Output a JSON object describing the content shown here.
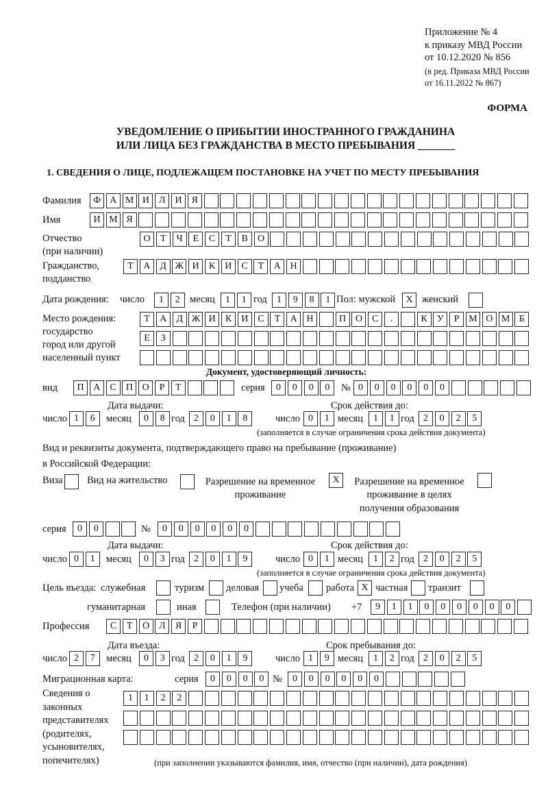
{
  "header": {
    "lines": [
      "Приложение № 4",
      "к приказу МВД России",
      "от 10.12.2020 № 856"
    ],
    "edit_lines": [
      "(в ред. Приказа МВД России",
      "от 16.11.2022 № 867)"
    ],
    "form_label": "ФОРМА"
  },
  "title": {
    "line1": "УВЕДОМЛЕНИЕ О ПРИБЫТИИ ИНОСТРАННОГО ГРАЖДАНИНА",
    "line2": "ИЛИ ЛИЦА БЕЗ ГРАЖДАНСТВА В МЕСТО ПРЕБЫВАНИЯ _______"
  },
  "section1": {
    "heading": "1. СВЕДЕНИЯ О ЛИЦЕ, ПОДЛЕЖАЩЕМ ПОСТАНОВКЕ НА УЧЕТ ПО МЕСТУ ПРЕБЫВАНИЯ"
  },
  "surname": {
    "label": "Фамилия",
    "value": "ФАМИЛИЯ"
  },
  "name": {
    "label": "Имя",
    "value": "ИМЯ"
  },
  "patronymic": {
    "label": "Отчество",
    "label2": "(при наличии)",
    "value": "ОТЧЕСТВО"
  },
  "citizenship": {
    "label": "Гражданство,",
    "label2": "подданство",
    "value": "ТАДЖИКИСТАН"
  },
  "birth": {
    "label": "Дата рождения:",
    "day_label": "число",
    "day": "12",
    "month_label": "месяц",
    "month": "11",
    "year_label": "год",
    "year": "1981"
  },
  "sex": {
    "label": "Пол: мужской",
    "male": "X",
    "female_label": "женский",
    "female": ""
  },
  "birthplace": {
    "label": [
      "Место рождения:",
      "государство",
      "город или другой",
      "населенный пункт"
    ],
    "row1": "ТАДЖИКИСТАН ПОС. КУРМОМБ",
    "row2": "ЕЗ",
    "row3": ""
  },
  "id_doc": {
    "heading": "Документ, удостоверяющий личность:",
    "type_label": "вид",
    "type": "ПАСПОРТ",
    "series_label": "серия",
    "series": "0000",
    "number_label": "№",
    "number": "000000",
    "issue_label": "Дата выдачи:",
    "issue": {
      "day": "16",
      "month": "08",
      "year": "2018"
    },
    "valid_label": "Срок действия до:",
    "valid": {
      "day": "01",
      "month": "11",
      "year": "2025"
    },
    "note": "(заполняется в случае ограничения срока действия документа)"
  },
  "labels": {
    "day": "число",
    "month": "месяц",
    "year": "год"
  },
  "stay_doc": {
    "heading": "Вид и реквизиты документа, подтверждающего право на пребывание (проживание)",
    "heading2": "в Российской Федерации:",
    "visa_label": "Виза",
    "visa": "",
    "residence_label": "Вид на жительство",
    "residence": "",
    "trp_label1": "Разрешение на временное",
    "trp_label2": "проживание",
    "trp": "X",
    "trp_edu_label1": "Разрешение на временное",
    "trp_edu_label2": "проживание в целях",
    "trp_edu_label3": "получения образования",
    "trp_edu": "",
    "series_label": "серия",
    "series": "00",
    "number_label": "№",
    "number": "000000",
    "issue_label": "Дата выдачи:",
    "issue": {
      "day": "01",
      "month": "03",
      "year": "2019"
    },
    "valid_label": "Срок действия до:",
    "valid": {
      "day": "01",
      "month": "12",
      "year": "2025"
    },
    "note": "(заполняется в случае ограничения срока действия документа)"
  },
  "purpose": {
    "label": "Цель въезда:",
    "options": [
      {
        "label": "служебная",
        "value": ""
      },
      {
        "label": "туризм",
        "value": ""
      },
      {
        "label": "деловая",
        "value": ""
      },
      {
        "label": "учеба",
        "value": ""
      },
      {
        "label": "работа",
        "value": "X"
      },
      {
        "label": "частная",
        "value": ""
      },
      {
        "label": "транзит",
        "value": ""
      },
      {
        "label": "гуманитарная",
        "value": ""
      },
      {
        "label": "иная",
        "value": ""
      }
    ]
  },
  "phone": {
    "label": "Телефон (при наличии)",
    "prefix": "+7",
    "value": "911000000"
  },
  "profession": {
    "label": "Профессия",
    "value": "СТОЛЯР"
  },
  "entry": {
    "label": "Дата въезда:",
    "day": "27",
    "month": "03",
    "year": "2019"
  },
  "stay_until": {
    "label": "Срок пребывания до:",
    "day": "19",
    "month": "12",
    "year": "2025"
  },
  "migration_card": {
    "label": "Миграционная карта:",
    "series_label": "серия",
    "series": "0000",
    "number_label": "№",
    "number": "000000"
  },
  "representatives": {
    "label": [
      "Сведения о",
      "законных",
      "представителях",
      "(родителях,",
      "усыновителях,",
      "попечителях)"
    ],
    "row1": "1122",
    "row2": "",
    "row3": "",
    "note": "(при заполнении указываются фамилия, имя, отчество (при наличии), дата рождения)"
  }
}
